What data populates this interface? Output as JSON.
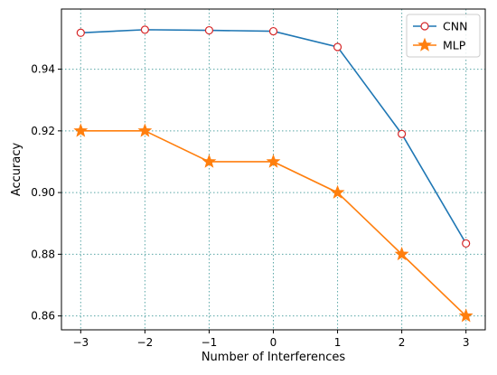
{
  "chart_data": {
    "type": "line",
    "title": "",
    "xlabel": "Number of Interferences",
    "ylabel": "Accuracy",
    "x": [
      -3,
      -2,
      -1,
      0,
      1,
      2,
      3
    ],
    "x_tick_labels": [
      "−3",
      "−2",
      "−1",
      "0",
      "1",
      "2",
      "3"
    ],
    "xlim": [
      -3.3,
      3.3
    ],
    "ylim": [
      0.8555,
      0.9595
    ],
    "y_ticks": [
      0.86,
      0.88,
      0.9,
      0.92,
      0.94
    ],
    "y_tick_labels": [
      "0.86",
      "0.88",
      "0.90",
      "0.92",
      "0.94"
    ],
    "grid": true,
    "legend_position": "top-right",
    "series": [
      {
        "name": "CNN",
        "color": "#1f77b4",
        "marker": "circle-open",
        "marker_color": "#d62728",
        "values": [
          0.9518,
          0.9528,
          0.9526,
          0.9523,
          0.9472,
          0.919,
          0.8835
        ]
      },
      {
        "name": "MLP",
        "color": "#ff7f0e",
        "marker": "star",
        "marker_color": "#ff7f0e",
        "values": [
          0.92,
          0.92,
          0.91,
          0.91,
          0.9,
          0.88,
          0.86
        ]
      }
    ]
  }
}
